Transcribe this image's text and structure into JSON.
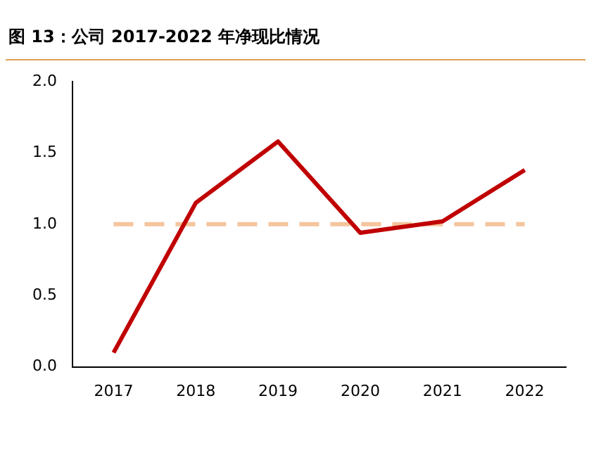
{
  "chart_data": {
    "type": "line",
    "title": "图 13：公司 2017-2022 年净现比情况",
    "categories": [
      "2017",
      "2018",
      "2019",
      "2020",
      "2021",
      "2022"
    ],
    "series": [
      {
        "color": "#c00000",
        "values": [
          0.1,
          1.15,
          1.58,
          0.94,
          1.02,
          1.38
        ]
      }
    ],
    "ylim": [
      0,
      2
    ],
    "yticks": [
      {
        "value": 0,
        "label": "0.0"
      },
      {
        "value": 0.5,
        "label": "0.5"
      },
      {
        "value": 1,
        "label": "1.0"
      },
      {
        "value": 1.5,
        "label": "1.5"
      },
      {
        "value": 2,
        "label": "2.0"
      }
    ],
    "ref_lines": [
      {
        "axis": "y",
        "value": 1,
        "color": "#f4c49c",
        "line_style": "dashed"
      }
    ],
    "grid": false,
    "legend": false,
    "marker": "none",
    "line_style": "solid"
  }
}
